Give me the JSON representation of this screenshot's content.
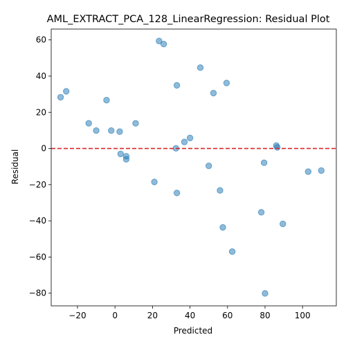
{
  "chart_data": {
    "type": "scatter",
    "title": "AML_EXTRACT_PCA_128_LinearRegression: Residual Plot",
    "xlabel": "Predicted",
    "ylabel": "Residual",
    "xlim": [
      -34,
      118
    ],
    "ylim": [
      -87,
      66
    ],
    "xticks": [
      -20,
      0,
      20,
      40,
      60,
      80,
      100
    ],
    "yticks": [
      -80,
      -60,
      -40,
      -20,
      0,
      20,
      40,
      60
    ],
    "point_color": "#1f77b4",
    "reference_line": {
      "y": 0,
      "color": "#d62728",
      "style": "dashed"
    },
    "points": [
      {
        "x": -29,
        "y": 28.3
      },
      {
        "x": -26,
        "y": 31.6
      },
      {
        "x": -14,
        "y": 13.9
      },
      {
        "x": -10,
        "y": 9.9
      },
      {
        "x": -4.5,
        "y": 26.7
      },
      {
        "x": -2,
        "y": 9.9
      },
      {
        "x": 2.5,
        "y": 9.3
      },
      {
        "x": 3,
        "y": -3.0
      },
      {
        "x": 6,
        "y": -4.3
      },
      {
        "x": 6,
        "y": -6.0
      },
      {
        "x": 11,
        "y": 13.9
      },
      {
        "x": 21,
        "y": -18.5
      },
      {
        "x": 23.5,
        "y": 59.4
      },
      {
        "x": 26,
        "y": 57.7
      },
      {
        "x": 32.5,
        "y": 0.1
      },
      {
        "x": 33,
        "y": 34.9
      },
      {
        "x": 33,
        "y": -24.6
      },
      {
        "x": 37,
        "y": 3.6
      },
      {
        "x": 40,
        "y": 5.8
      },
      {
        "x": 45.5,
        "y": 44.7
      },
      {
        "x": 50,
        "y": -9.6
      },
      {
        "x": 52.5,
        "y": 30.6
      },
      {
        "x": 56,
        "y": -23.2
      },
      {
        "x": 57.5,
        "y": -43.6
      },
      {
        "x": 59.5,
        "y": 36.2
      },
      {
        "x": 62.5,
        "y": -57.0
      },
      {
        "x": 78,
        "y": -35.3
      },
      {
        "x": 79.5,
        "y": -7.9
      },
      {
        "x": 80,
        "y": -80.1
      },
      {
        "x": 86,
        "y": 1.6
      },
      {
        "x": 86.5,
        "y": 0.6
      },
      {
        "x": 89.5,
        "y": -41.7
      },
      {
        "x": 103,
        "y": -12.8
      },
      {
        "x": 110,
        "y": -12.2
      }
    ]
  }
}
